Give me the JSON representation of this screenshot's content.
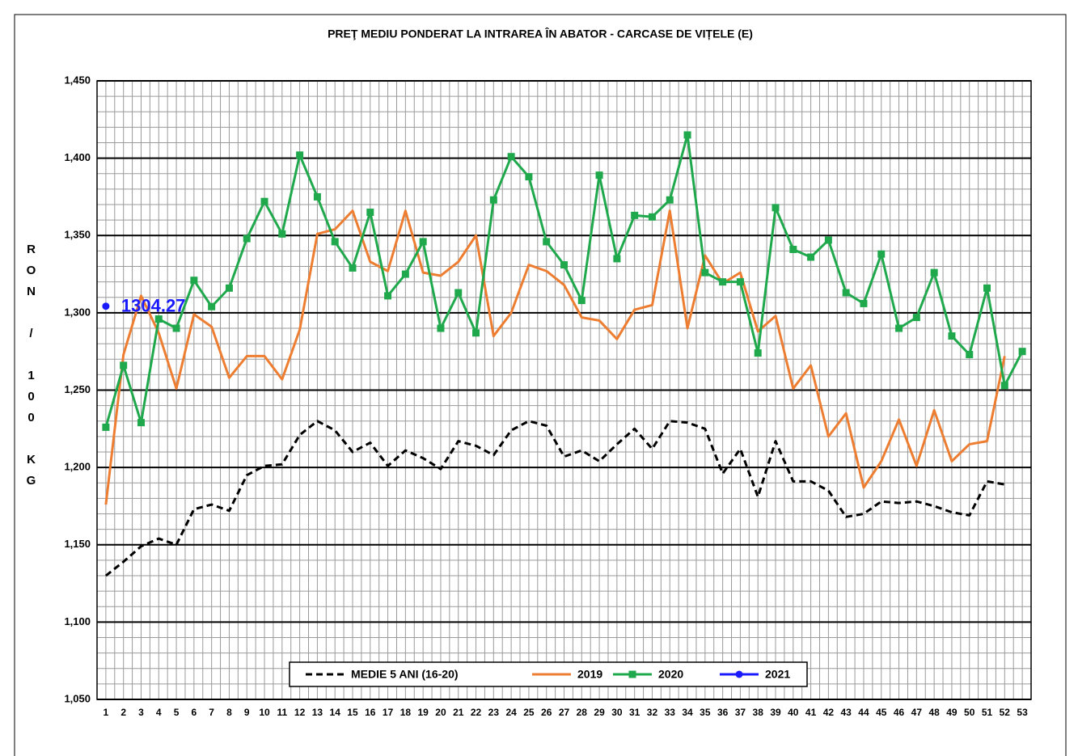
{
  "chart_data": {
    "type": "line",
    "title": "PREŢ MEDIU PONDERAT LA INTRAREA ÎN ABATOR - CARCASE DE VIȚELE (E)",
    "y_label": "RON / 100 KG",
    "categories": [
      "1",
      "2",
      "3",
      "4",
      "5",
      "6",
      "7",
      "8",
      "9",
      "10",
      "11",
      "12",
      "13",
      "14",
      "15",
      "16",
      "17",
      "18",
      "19",
      "20",
      "21",
      "22",
      "23",
      "24",
      "25",
      "26",
      "27",
      "28",
      "29",
      "30",
      "31",
      "32",
      "33",
      "34",
      "35",
      "36",
      "37",
      "38",
      "39",
      "40",
      "41",
      "42",
      "43",
      "44",
      "45",
      "46",
      "47",
      "48",
      "49",
      "50",
      "51",
      "52",
      "53"
    ],
    "ylim": [
      1050,
      1450
    ],
    "yticks": [
      {
        "value": 1050,
        "label": "1,050"
      },
      {
        "value": 1100,
        "label": "1,100"
      },
      {
        "value": 1150,
        "label": "1,150"
      },
      {
        "value": 1200,
        "label": "1,200"
      },
      {
        "value": 1250,
        "label": "1,250"
      },
      {
        "value": 1300,
        "label": "1,300"
      },
      {
        "value": 1350,
        "label": "1,350"
      },
      {
        "value": 1400,
        "label": "1,400"
      },
      {
        "value": 1450,
        "label": "1,450"
      }
    ],
    "grid": true,
    "legend": "bottom",
    "series": [
      {
        "name": "MEDIE 5 ANI (16-20)",
        "color": "#000000",
        "style": "dashed",
        "marker": "none",
        "values": [
          1130,
          1139,
          1149,
          1154,
          1150,
          1173,
          1176,
          1172,
          1195,
          1201,
          1202,
          1221,
          1230,
          1224,
          1210,
          1216,
          1201,
          1211,
          1206,
          1199,
          1217,
          1214,
          1208,
          1224,
          1230,
          1227,
          1207,
          1211,
          1204,
          1215,
          1225,
          1212,
          1230,
          1229,
          1225,
          1196,
          1212,
          1181,
          1217,
          1191,
          1191,
          1185,
          1168,
          1170,
          1178,
          1177,
          1178,
          1175,
          1171,
          1169,
          1191,
          1189,
          null
        ]
      },
      {
        "name": "2019",
        "color": "#ed7d31",
        "style": "solid",
        "marker": "none",
        "values": [
          1176,
          1273,
          1311,
          1287,
          1251,
          1299,
          1291,
          1258,
          1272,
          1272,
          1257,
          1289,
          1351,
          1354,
          1366,
          1333,
          1327,
          1366,
          1326,
          1324,
          1333,
          1350,
          1285,
          1300,
          1331,
          1327,
          1318,
          1297,
          1295,
          1283,
          1302,
          1305,
          1366,
          1290,
          1337,
          1319,
          1326,
          1288,
          1298,
          1251,
          1266,
          1220,
          1235,
          1187,
          1204,
          1231,
          1201,
          1237,
          1204,
          1215,
          1217,
          1272,
          null
        ]
      },
      {
        "name": "2020",
        "color": "#1fa94c",
        "style": "solid",
        "marker": "square",
        "values": [
          1226,
          1266,
          1229,
          1296,
          1290,
          1321,
          1304,
          1316,
          1348,
          1372,
          1351,
          1402,
          1375,
          1346,
          1329,
          1365,
          1311,
          1325,
          1346,
          1290,
          1313,
          1287,
          1373,
          1401,
          1388,
          1346,
          1331,
          1308,
          1389,
          1335,
          1363,
          1362,
          1373,
          1415,
          1326,
          1320,
          1320,
          1274,
          1368,
          1341,
          1336,
          1347,
          1313,
          1306,
          1338,
          1290,
          1297,
          1326,
          1285,
          1273,
          1316,
          1253,
          1275
        ]
      },
      {
        "name": "2021",
        "color": "#1a1aff",
        "style": "solid",
        "marker": "circle",
        "values": [
          1304.27,
          null,
          null,
          null,
          null,
          null,
          null,
          null,
          null,
          null,
          null,
          null,
          null,
          null,
          null,
          null,
          null,
          null,
          null,
          null,
          null,
          null,
          null,
          null,
          null,
          null,
          null,
          null,
          null,
          null,
          null,
          null,
          null,
          null,
          null,
          null,
          null,
          null,
          null,
          null,
          null,
          null,
          null,
          null,
          null,
          null,
          null,
          null,
          null,
          null,
          null,
          null,
          null
        ]
      }
    ]
  }
}
